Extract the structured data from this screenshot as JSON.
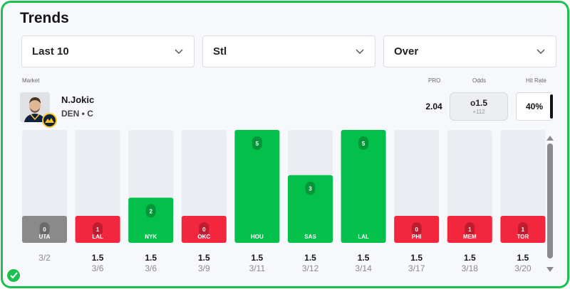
{
  "title": "Trends",
  "filters": [
    {
      "label": "Last 10"
    },
    {
      "label": "Stl"
    },
    {
      "label": "Over"
    }
  ],
  "headers": {
    "market": "Market",
    "pro": "PRO",
    "odds": "Odds",
    "hit_rate": "Hit Rate"
  },
  "player": {
    "name": "N.Jokic",
    "meta": "DEN • C"
  },
  "pro_value": "2.04",
  "odds": {
    "line": "o1.5",
    "price": "+112"
  },
  "hit_rate": "40%",
  "colors": {
    "accent": "#1dbf4f",
    "hit": "#03c04a",
    "miss": "#f2263c",
    "push": "#8a8a8a",
    "track": "#ecedf3"
  },
  "chart_data": {
    "type": "bar",
    "title": "Trends",
    "ymax": 5,
    "threshold": 1.5,
    "games": [
      {
        "opp": "UTA",
        "value": 0,
        "result": "push",
        "line": "",
        "date": "3/2"
      },
      {
        "opp": "LAL",
        "value": 1,
        "result": "miss",
        "line": "1.5",
        "date": "3/6"
      },
      {
        "opp": "NYK",
        "value": 2,
        "result": "hit",
        "line": "1.5",
        "date": "3/6"
      },
      {
        "opp": "OKC",
        "value": 0,
        "result": "miss",
        "line": "1.5",
        "date": "3/9"
      },
      {
        "opp": "HOU",
        "value": 5,
        "result": "hit",
        "line": "1.5",
        "date": "3/11"
      },
      {
        "opp": "SAS",
        "value": 3,
        "result": "hit",
        "line": "1.5",
        "date": "3/12"
      },
      {
        "opp": "LAL",
        "value": 5,
        "result": "hit",
        "line": "1.5",
        "date": "3/14"
      },
      {
        "opp": "PHI",
        "value": 0,
        "result": "miss",
        "line": "1.5",
        "date": "3/17"
      },
      {
        "opp": "MEM",
        "value": 1,
        "result": "miss",
        "line": "1.5",
        "date": "3/18"
      },
      {
        "opp": "TOR",
        "value": 1,
        "result": "miss",
        "line": "1.5",
        "date": "3/20"
      }
    ]
  }
}
